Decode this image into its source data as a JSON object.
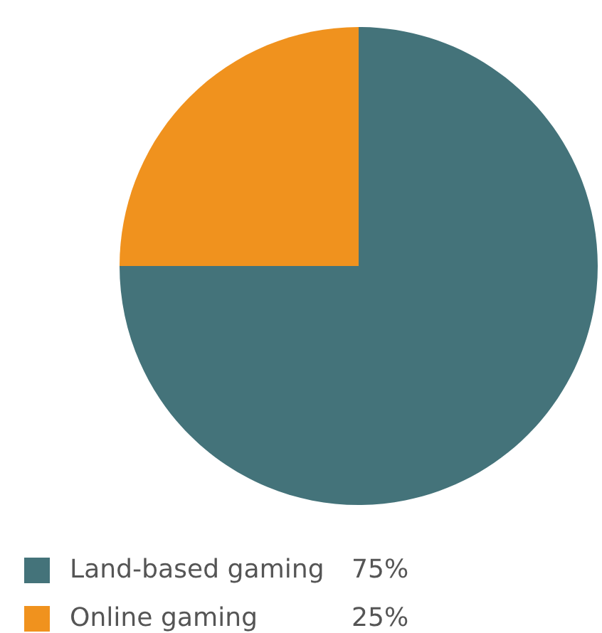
{
  "chart_data": {
    "type": "pie",
    "categories": [
      "Land-based gaming",
      "Online gaming"
    ],
    "values": [
      75,
      25
    ],
    "colors": [
      "#44737a",
      "#f0921e"
    ],
    "value_labels": [
      "75%",
      "25%"
    ],
    "legend": "bottom left"
  }
}
